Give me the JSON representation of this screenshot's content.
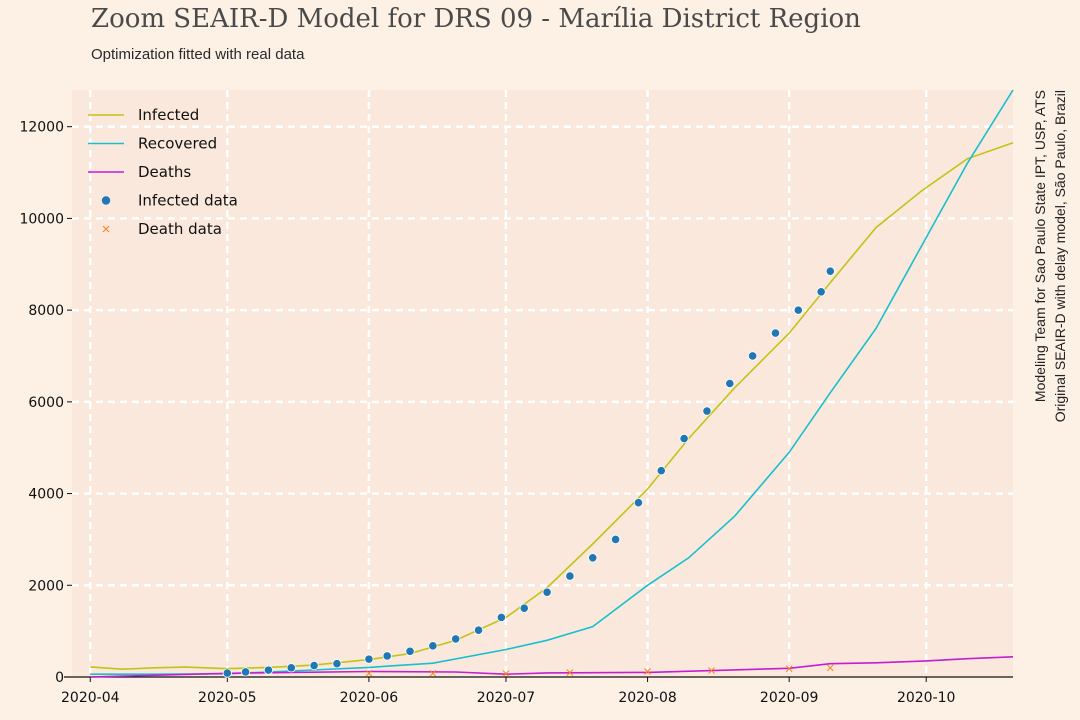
{
  "title": "Zoom SEAIR-D Model for DRS 09 - Marília District Region",
  "subtitle": "Optimization fitted with real data",
  "side_note": {
    "line1": "Modeling Team for Sao Paulo State IPT, USP, ATS",
    "line2": "Original SEAIR-D with delay model, São Paulo, Brazil"
  },
  "colors": {
    "background": "#fdf1e6",
    "plot_background": "#fae8dc",
    "grid": "#ffffff",
    "infected": "#c3c316",
    "recovered": "#17bfcf",
    "deaths": "#c31ed4",
    "infected_data": "#1f77b4",
    "death_data": "#ff7f0e"
  },
  "chart_data": {
    "type": "line",
    "title": "Zoom SEAIR-D Model for DRS 09 - Marília District Region",
    "subtitle": "Optimization fitted with real data",
    "xlabel": "",
    "ylabel": "",
    "x_axis": "date",
    "xlim": [
      "2020-03-28",
      "2020-10-20"
    ],
    "ylim": [
      0,
      12800
    ],
    "x_ticks": [
      "2020-04-01",
      "2020-05-01",
      "2020-06-01",
      "2020-07-01",
      "2020-08-01",
      "2020-09-01",
      "2020-10-01"
    ],
    "x_tick_labels": [
      "2020-04",
      "2020-05",
      "2020-06",
      "2020-07",
      "2020-08",
      "2020-09",
      "2020-10"
    ],
    "y_ticks": [
      0,
      2000,
      4000,
      6000,
      8000,
      10000,
      12000
    ],
    "y_tick_labels": [
      "0",
      "2000",
      "4000",
      "6000",
      "8000",
      "10000",
      "12000"
    ],
    "grid": true,
    "legend_position": "top-left",
    "series": [
      {
        "name": "Infected",
        "kind": "line",
        "points": [
          [
            "2020-04-01",
            220
          ],
          [
            "2020-04-08",
            170
          ],
          [
            "2020-04-15",
            200
          ],
          [
            "2020-04-22",
            215
          ],
          [
            "2020-05-01",
            180
          ],
          [
            "2020-05-10",
            210
          ],
          [
            "2020-05-20",
            260
          ],
          [
            "2020-06-01",
            380
          ],
          [
            "2020-06-10",
            510
          ],
          [
            "2020-06-20",
            800
          ],
          [
            "2020-07-01",
            1300
          ],
          [
            "2020-07-10",
            1950
          ],
          [
            "2020-07-20",
            2900
          ],
          [
            "2020-08-01",
            4100
          ],
          [
            "2020-08-10",
            5200
          ],
          [
            "2020-08-20",
            6300
          ],
          [
            "2020-09-01",
            7500
          ],
          [
            "2020-09-10",
            8600
          ],
          [
            "2020-09-20",
            9800
          ],
          [
            "2020-09-30",
            10600
          ],
          [
            "2020-10-10",
            11300
          ],
          [
            "2020-10-20",
            11650
          ]
        ]
      },
      {
        "name": "Recovered",
        "kind": "line",
        "points": [
          [
            "2020-04-01",
            60
          ],
          [
            "2020-04-15",
            60
          ],
          [
            "2020-05-01",
            70
          ],
          [
            "2020-05-15",
            130
          ],
          [
            "2020-06-01",
            210
          ],
          [
            "2020-06-15",
            300
          ],
          [
            "2020-07-01",
            600
          ],
          [
            "2020-07-10",
            800
          ],
          [
            "2020-07-20",
            1100
          ],
          [
            "2020-08-01",
            2000
          ],
          [
            "2020-08-10",
            2600
          ],
          [
            "2020-08-20",
            3500
          ],
          [
            "2020-09-01",
            4900
          ],
          [
            "2020-09-10",
            6200
          ],
          [
            "2020-09-20",
            7600
          ],
          [
            "2020-09-30",
            9400
          ],
          [
            "2020-10-10",
            11200
          ],
          [
            "2020-10-20",
            12800
          ]
        ]
      },
      {
        "name": "Deaths",
        "kind": "line",
        "points": [
          [
            "2020-04-01",
            0
          ],
          [
            "2020-05-01",
            80
          ],
          [
            "2020-06-01",
            120
          ],
          [
            "2020-06-20",
            110
          ],
          [
            "2020-07-01",
            60
          ],
          [
            "2020-07-10",
            90
          ],
          [
            "2020-08-01",
            100
          ],
          [
            "2020-09-01",
            190
          ],
          [
            "2020-09-10",
            290
          ],
          [
            "2020-09-20",
            310
          ],
          [
            "2020-10-01",
            350
          ],
          [
            "2020-10-10",
            400
          ],
          [
            "2020-10-20",
            440
          ]
        ]
      },
      {
        "name": "Infected data",
        "kind": "scatter",
        "points": [
          [
            "2020-05-01",
            85
          ],
          [
            "2020-05-05",
            110
          ],
          [
            "2020-05-10",
            150
          ],
          [
            "2020-05-15",
            200
          ],
          [
            "2020-05-20",
            250
          ],
          [
            "2020-05-25",
            290
          ],
          [
            "2020-06-01",
            390
          ],
          [
            "2020-06-05",
            460
          ],
          [
            "2020-06-10",
            560
          ],
          [
            "2020-06-15",
            680
          ],
          [
            "2020-06-20",
            830
          ],
          [
            "2020-06-25",
            1020
          ],
          [
            "2020-06-30",
            1300
          ],
          [
            "2020-07-05",
            1500
          ],
          [
            "2020-07-10",
            1850
          ],
          [
            "2020-07-15",
            2200
          ],
          [
            "2020-07-20",
            2600
          ],
          [
            "2020-07-25",
            3000
          ],
          [
            "2020-07-30",
            3800
          ],
          [
            "2020-08-04",
            4500
          ],
          [
            "2020-08-09",
            5200
          ],
          [
            "2020-08-14",
            5800
          ],
          [
            "2020-08-19",
            6400
          ],
          [
            "2020-08-24",
            7000
          ],
          [
            "2020-08-29",
            7500
          ],
          [
            "2020-09-03",
            8000
          ],
          [
            "2020-09-08",
            8400
          ],
          [
            "2020-09-10",
            8850
          ]
        ]
      },
      {
        "name": "Death data",
        "kind": "scatter",
        "points": [
          [
            "2020-06-01",
            80
          ],
          [
            "2020-06-15",
            80
          ],
          [
            "2020-07-01",
            75
          ],
          [
            "2020-07-15",
            95
          ],
          [
            "2020-08-01",
            120
          ],
          [
            "2020-08-15",
            140
          ],
          [
            "2020-09-01",
            180
          ],
          [
            "2020-09-10",
            200
          ]
        ]
      }
    ]
  }
}
